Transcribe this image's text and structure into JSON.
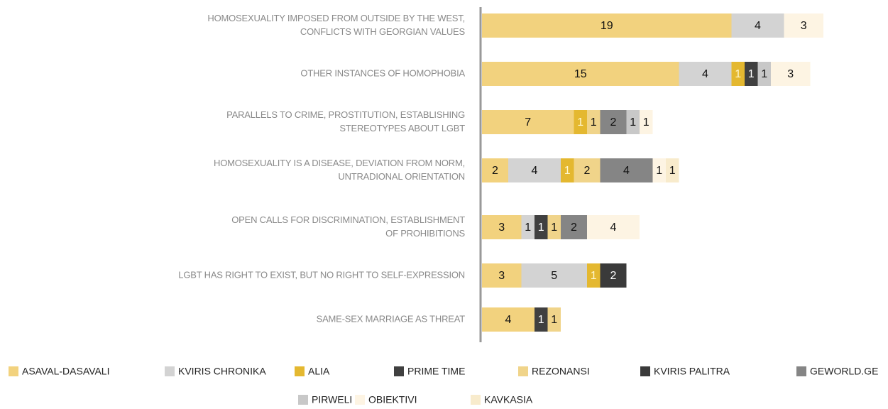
{
  "chart_data": {
    "type": "stacked_bar_horizontal",
    "categories": [
      [
        "HOMOSEXUALITY IMPOSED FROM OUTSIDE BY THE WEST,",
        "CONFLICTS WITH GEORGIAN VALUES"
      ],
      [
        "OTHER INSTANCES OF HOMOPHOBIA"
      ],
      [
        "PARALLELS TO CRIME, PROSTITUTION, ESTABLISHING",
        "STEREOTYPES ABOUT LGBT"
      ],
      [
        "HOMOSEXUALITY IS A DISEASE, DEVIATION FROM NORM,",
        "UNTRADIONAL ORIENTATION"
      ],
      [
        "OPEN CALLS FOR DISCRIMINATION, ESTABLISHMENT",
        "OF PROHIBITIONS"
      ],
      [
        "LGBT HAS RIGHT TO EXIST, BUT NO RIGHT TO SELF-EXPRESSION"
      ],
      [
        "SAME-SEX MARRIAGE AS THREAT"
      ]
    ],
    "series": [
      {
        "name": "ASAVAL-DASAVALI",
        "color": "#f2d27e",
        "values": [
          19,
          15,
          7,
          2,
          3,
          3,
          4
        ]
      },
      {
        "name": "KVIRIS CHRONIKA",
        "color": "#d3d3d3",
        "values": [
          4,
          4,
          null,
          4,
          1,
          5,
          null
        ]
      },
      {
        "name": "ALIA",
        "color": "#e4b830",
        "values": [
          null,
          1,
          1,
          1,
          null,
          1,
          null
        ]
      },
      {
        "name": "PRIME TIME",
        "color": "#404040",
        "values": [
          null,
          1,
          null,
          null,
          1,
          null,
          1
        ]
      },
      {
        "name": "REZONANSI",
        "color": "#f0d48a",
        "values": [
          null,
          null,
          1,
          2,
          1,
          null,
          1
        ]
      },
      {
        "name": "KVIRIS PALITRA",
        "color": "#3a3a3a",
        "values": [
          null,
          null,
          null,
          null,
          null,
          2,
          null
        ]
      },
      {
        "name": "GEWORLD.GE",
        "color": "#858585",
        "values": [
          null,
          null,
          2,
          4,
          2,
          null,
          null
        ]
      },
      {
        "name": "PIRWELI",
        "color": "#c8c8c8",
        "values": [
          null,
          1,
          1,
          null,
          null,
          null,
          null
        ]
      },
      {
        "name": "OBIEKTIVI",
        "color": "#fdf4e3",
        "values": [
          3,
          3,
          1,
          1,
          4,
          null,
          null
        ]
      },
      {
        "name": "KAVKASIA",
        "color": "#f8ebcc",
        "values": [
          null,
          null,
          null,
          1,
          null,
          null,
          null
        ]
      }
    ]
  }
}
